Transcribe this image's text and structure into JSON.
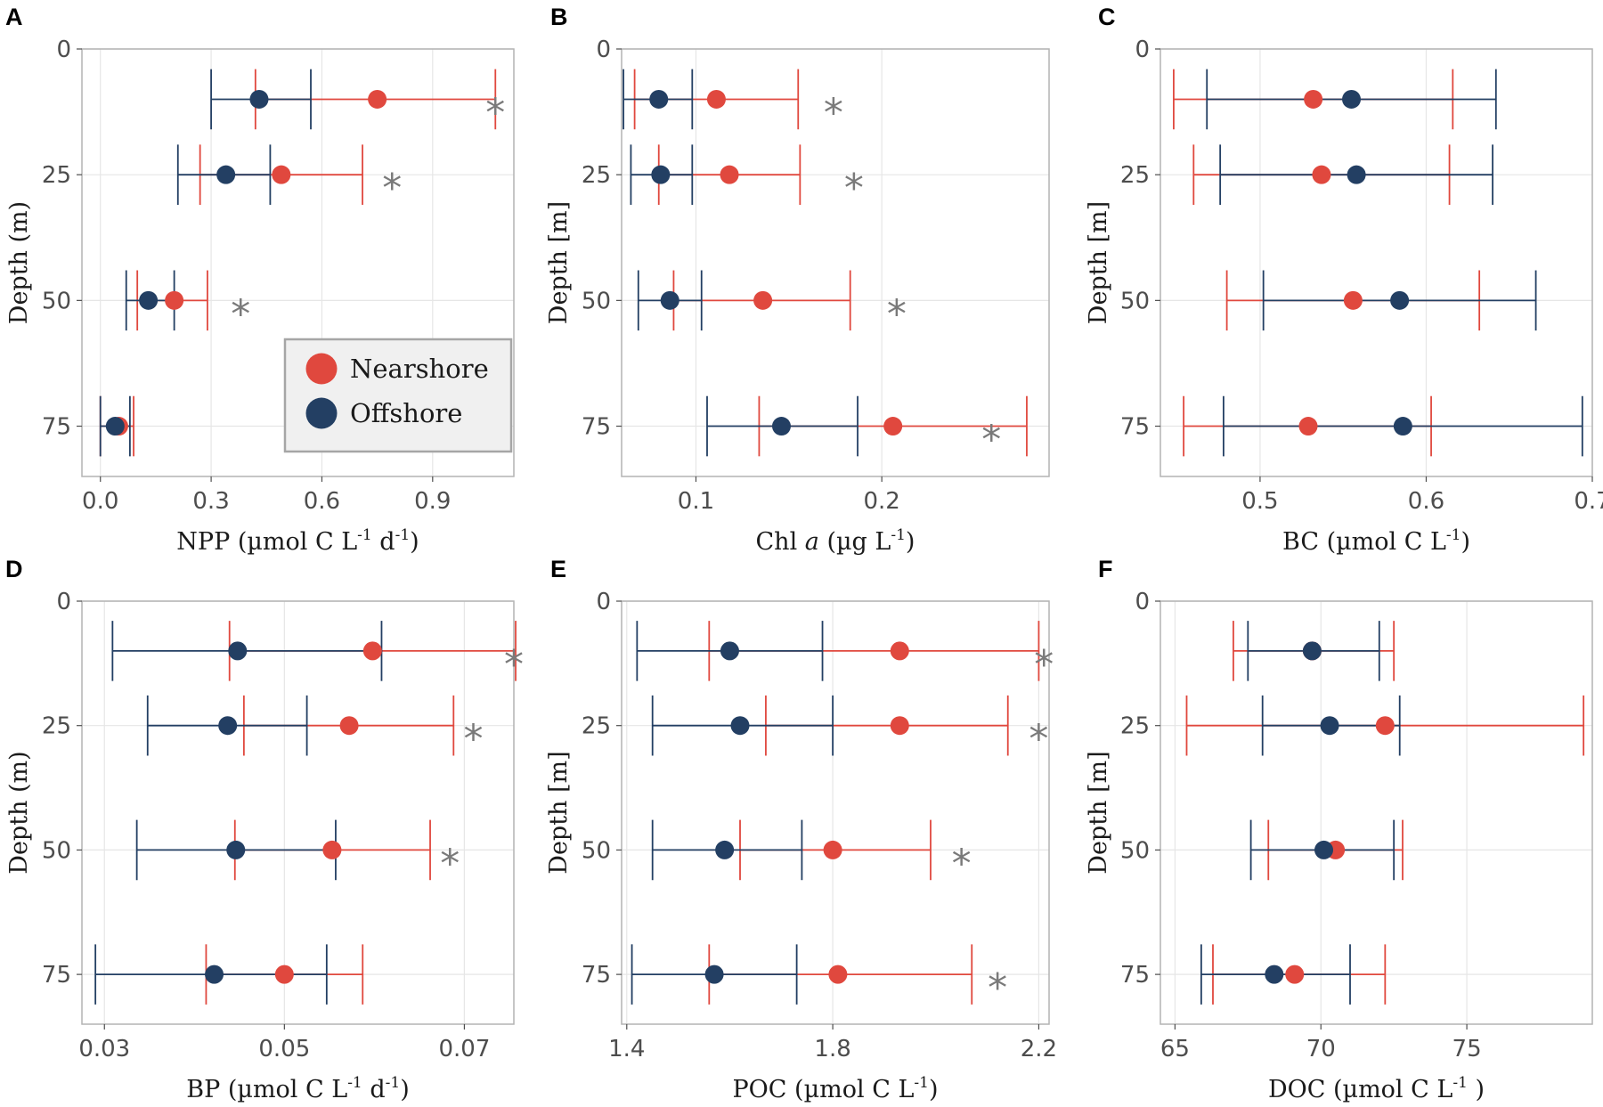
{
  "figure": {
    "legend_panel": "A"
  },
  "colors": {
    "nearshore": "#e0483e",
    "offshore": "#233f63",
    "star": "#7a7a7a",
    "grid": "#e6e6e6",
    "panel_border": "#b3b3b3"
  },
  "legend": {
    "items": [
      {
        "key": "nearshore",
        "label": "Nearshore"
      },
      {
        "key": "offshore",
        "label": "Offshore"
      }
    ]
  },
  "chart_data": [
    {
      "panel": "A",
      "type": "scatter",
      "xlabel": {
        "main": "NPP (µmol C L",
        "sup1": "-1",
        "mid": " d",
        "sup2": "-1",
        "end": ")"
      },
      "ylabel": "Depth (m)",
      "xlim": [
        -0.05,
        1.12
      ],
      "ylim": [
        0,
        85
      ],
      "xticks": [
        0.0,
        0.3,
        0.6,
        0.9
      ],
      "xtick_labels": [
        "0.0",
        "0.3",
        "0.6",
        "0.9"
      ],
      "yticks": [
        0,
        25,
        50,
        75
      ],
      "ytick_labels": [
        "0",
        "25",
        "50",
        "75"
      ],
      "series": [
        {
          "name": "Nearshore",
          "points": [
            {
              "depth": 10,
              "mean": 0.75,
              "lo": 0.42,
              "hi": 1.07
            },
            {
              "depth": 25,
              "mean": 0.49,
              "lo": 0.27,
              "hi": 0.71
            },
            {
              "depth": 50,
              "mean": 0.2,
              "lo": 0.1,
              "hi": 0.29
            },
            {
              "depth": 75,
              "mean": 0.05,
              "lo": 0.0,
              "hi": 0.09
            }
          ]
        },
        {
          "name": "Offshore",
          "points": [
            {
              "depth": 10,
              "mean": 0.43,
              "lo": 0.3,
              "hi": 0.57
            },
            {
              "depth": 25,
              "mean": 0.34,
              "lo": 0.21,
              "hi": 0.46
            },
            {
              "depth": 50,
              "mean": 0.13,
              "lo": 0.07,
              "hi": 0.2
            },
            {
              "depth": 75,
              "mean": 0.04,
              "lo": 0.0,
              "hi": 0.08
            }
          ]
        }
      ],
      "significance": [
        {
          "depth": 10,
          "x": 1.07,
          "label": "*"
        },
        {
          "depth": 25,
          "x": 0.79,
          "label": "*"
        },
        {
          "depth": 50,
          "x": 0.38,
          "label": "*"
        }
      ]
    },
    {
      "panel": "B",
      "type": "scatter",
      "xlabel": {
        "main": "Chl ",
        "italic": "a",
        "mid": " (µg L",
        "sup1": "-1",
        "end": ")"
      },
      "ylabel": "Depth [m]",
      "xlim": [
        0.06,
        0.29
      ],
      "ylim": [
        0,
        85
      ],
      "xticks": [
        0.1,
        0.2
      ],
      "xtick_labels": [
        "0.1",
        "0.2"
      ],
      "yticks": [
        0,
        25,
        50,
        75
      ],
      "ytick_labels": [
        "0",
        "25",
        "50",
        "75"
      ],
      "series": [
        {
          "name": "Nearshore",
          "points": [
            {
              "depth": 10,
              "mean": 0.111,
              "lo": 0.067,
              "hi": 0.155
            },
            {
              "depth": 25,
              "mean": 0.118,
              "lo": 0.08,
              "hi": 0.156
            },
            {
              "depth": 50,
              "mean": 0.136,
              "lo": 0.088,
              "hi": 0.183
            },
            {
              "depth": 75,
              "mean": 0.206,
              "lo": 0.134,
              "hi": 0.278
            }
          ]
        },
        {
          "name": "Offshore",
          "points": [
            {
              "depth": 10,
              "mean": 0.08,
              "lo": 0.061,
              "hi": 0.098
            },
            {
              "depth": 25,
              "mean": 0.081,
              "lo": 0.065,
              "hi": 0.098
            },
            {
              "depth": 50,
              "mean": 0.086,
              "lo": 0.069,
              "hi": 0.103
            },
            {
              "depth": 75,
              "mean": 0.146,
              "lo": 0.106,
              "hi": 0.187
            }
          ]
        }
      ],
      "significance": [
        {
          "depth": 10,
          "x": 0.174,
          "label": "*"
        },
        {
          "depth": 25,
          "x": 0.185,
          "label": "*"
        },
        {
          "depth": 50,
          "x": 0.208,
          "label": "*"
        },
        {
          "depth": 75,
          "x": 0.259,
          "label": "*"
        }
      ]
    },
    {
      "panel": "C",
      "type": "scatter",
      "xlabel": {
        "main": "BC (µmol C L",
        "sup1": "-1",
        "end": ")"
      },
      "ylabel": "Depth [m]",
      "xlim": [
        0.44,
        0.7
      ],
      "ylim": [
        0,
        85
      ],
      "xticks": [
        0.5,
        0.6,
        0.7
      ],
      "xtick_labels": [
        "0.5",
        "0.6",
        "0.7"
      ],
      "yticks": [
        0,
        25,
        50,
        75
      ],
      "ytick_labels": [
        "0",
        "25",
        "50",
        "75"
      ],
      "series": [
        {
          "name": "Nearshore",
          "points": [
            {
              "depth": 10,
              "mean": 0.532,
              "lo": 0.448,
              "hi": 0.616
            },
            {
              "depth": 25,
              "mean": 0.537,
              "lo": 0.46,
              "hi": 0.614
            },
            {
              "depth": 50,
              "mean": 0.556,
              "lo": 0.48,
              "hi": 0.632
            },
            {
              "depth": 75,
              "mean": 0.529,
              "lo": 0.454,
              "hi": 0.603
            }
          ]
        },
        {
          "name": "Offshore",
          "points": [
            {
              "depth": 10,
              "mean": 0.555,
              "lo": 0.468,
              "hi": 0.642
            },
            {
              "depth": 25,
              "mean": 0.558,
              "lo": 0.476,
              "hi": 0.64
            },
            {
              "depth": 50,
              "mean": 0.584,
              "lo": 0.502,
              "hi": 0.666
            },
            {
              "depth": 75,
              "mean": 0.586,
              "lo": 0.478,
              "hi": 0.694
            }
          ]
        }
      ],
      "significance": []
    },
    {
      "panel": "D",
      "type": "scatter",
      "xlabel": {
        "main": "BP (µmol C L",
        "sup1": "-1",
        "mid": " d",
        "sup2": "-1",
        "end": ")"
      },
      "ylabel": "Depth (m)",
      "xlim": [
        0.0275,
        0.0755
      ],
      "ylim": [
        0,
        85
      ],
      "xticks": [
        0.03,
        0.05,
        0.07
      ],
      "xtick_labels": [
        "0.03",
        "0.05",
        "0.07"
      ],
      "yticks": [
        0,
        25,
        50,
        75
      ],
      "ytick_labels": [
        "0",
        "25",
        "50",
        "75"
      ],
      "series": [
        {
          "name": "Nearshore",
          "points": [
            {
              "depth": 10,
              "mean": 0.0598,
              "lo": 0.0439,
              "hi": 0.0757
            },
            {
              "depth": 25,
              "mean": 0.0572,
              "lo": 0.0455,
              "hi": 0.0688
            },
            {
              "depth": 50,
              "mean": 0.0553,
              "lo": 0.0445,
              "hi": 0.0662
            },
            {
              "depth": 75,
              "mean": 0.05,
              "lo": 0.0413,
              "hi": 0.0587
            }
          ]
        },
        {
          "name": "Offshore",
          "points": [
            {
              "depth": 10,
              "mean": 0.0448,
              "lo": 0.0309,
              "hi": 0.0608
            },
            {
              "depth": 25,
              "mean": 0.0437,
              "lo": 0.0348,
              "hi": 0.0525
            },
            {
              "depth": 50,
              "mean": 0.0446,
              "lo": 0.0336,
              "hi": 0.0557
            },
            {
              "depth": 75,
              "mean": 0.0422,
              "lo": 0.029,
              "hi": 0.0547
            }
          ]
        }
      ],
      "significance": [
        {
          "depth": 10,
          "x": 0.0755,
          "label": "*"
        },
        {
          "depth": 25,
          "x": 0.071,
          "label": "*"
        },
        {
          "depth": 50,
          "x": 0.0684,
          "label": "*"
        }
      ]
    },
    {
      "panel": "E",
      "type": "scatter",
      "xlabel": {
        "main": "POC (µmol C L",
        "sup1": "-1",
        "end": ")"
      },
      "ylabel": "Depth [m]",
      "xlim": [
        1.39,
        2.22
      ],
      "ylim": [
        0,
        85
      ],
      "xticks": [
        1.4,
        1.8,
        2.2
      ],
      "xtick_labels": [
        "1.4",
        "1.8",
        "2.2"
      ],
      "yticks": [
        0,
        25,
        50,
        75
      ],
      "ytick_labels": [
        "0",
        "25",
        "50",
        "75"
      ],
      "series": [
        {
          "name": "Nearshore",
          "points": [
            {
              "depth": 10,
              "mean": 1.93,
              "lo": 1.56,
              "hi": 2.2
            },
            {
              "depth": 25,
              "mean": 1.93,
              "lo": 1.67,
              "hi": 2.14
            },
            {
              "depth": 50,
              "mean": 1.8,
              "lo": 1.62,
              "hi": 1.99
            },
            {
              "depth": 75,
              "mean": 1.81,
              "lo": 1.56,
              "hi": 2.07
            }
          ]
        },
        {
          "name": "Offshore",
          "points": [
            {
              "depth": 10,
              "mean": 1.6,
              "lo": 1.42,
              "hi": 1.78
            },
            {
              "depth": 25,
              "mean": 1.62,
              "lo": 1.45,
              "hi": 1.8
            },
            {
              "depth": 50,
              "mean": 1.59,
              "lo": 1.45,
              "hi": 1.74
            },
            {
              "depth": 75,
              "mean": 1.57,
              "lo": 1.41,
              "hi": 1.73
            }
          ]
        }
      ],
      "significance": [
        {
          "depth": 10,
          "x": 2.21,
          "label": "*"
        },
        {
          "depth": 25,
          "x": 2.2,
          "label": "*"
        },
        {
          "depth": 50,
          "x": 2.05,
          "label": "*"
        },
        {
          "depth": 75,
          "x": 2.12,
          "label": "*"
        }
      ]
    },
    {
      "panel": "F",
      "type": "scatter",
      "xlabel": {
        "main": "DOC (µmol C L",
        "sup1": "-1",
        "end": " )"
      },
      "ylabel": "Depth [m]",
      "xlim": [
        64.5,
        79.3
      ],
      "ylim": [
        0,
        85
      ],
      "xticks": [
        65,
        70,
        75
      ],
      "xtick_labels": [
        "65",
        "70",
        "75"
      ],
      "yticks": [
        0,
        25,
        50,
        75
      ],
      "ytick_labels": [
        "0",
        "25",
        "50",
        "75"
      ],
      "series": [
        {
          "name": "Nearshore",
          "points": [
            {
              "depth": 10,
              "mean": 69.7,
              "lo": 67.0,
              "hi": 72.5
            },
            {
              "depth": 25,
              "mean": 72.2,
              "lo": 65.4,
              "hi": 79.0
            },
            {
              "depth": 50,
              "mean": 70.5,
              "lo": 68.2,
              "hi": 72.8
            },
            {
              "depth": 75,
              "mean": 69.1,
              "lo": 66.3,
              "hi": 72.2
            }
          ]
        },
        {
          "name": "Offshore",
          "points": [
            {
              "depth": 10,
              "mean": 69.7,
              "lo": 67.5,
              "hi": 72.0
            },
            {
              "depth": 25,
              "mean": 70.3,
              "lo": 68.0,
              "hi": 72.7
            },
            {
              "depth": 50,
              "mean": 70.1,
              "lo": 67.6,
              "hi": 72.5
            },
            {
              "depth": 75,
              "mean": 68.4,
              "lo": 65.9,
              "hi": 71.0
            }
          ]
        }
      ],
      "significance": []
    }
  ]
}
